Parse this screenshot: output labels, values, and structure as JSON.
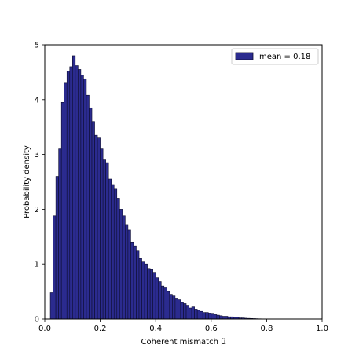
{
  "chart_data": {
    "type": "bar",
    "title": "",
    "xlabel": "Coherent mismatch μ̃",
    "ylabel": "Probability density",
    "xlim": [
      0.0,
      1.0
    ],
    "ylim": [
      0,
      5
    ],
    "x_ticks": [
      "0.0",
      "0.2",
      "0.4",
      "0.6",
      "0.8",
      "1.0"
    ],
    "y_ticks": [
      "0",
      "1",
      "2",
      "3",
      "4",
      "5"
    ],
    "grid": false,
    "legend_position": "top-right",
    "bar_color": "#2b2b8f",
    "edge_color": "#0d0d2e",
    "bin_width": 0.01,
    "series": [
      {
        "name": "mean = 0.18",
        "bin_start": 0.02,
        "values": [
          0.48,
          1.88,
          2.6,
          3.1,
          3.95,
          4.3,
          4.52,
          4.6,
          4.8,
          4.62,
          4.55,
          4.45,
          4.38,
          4.08,
          3.85,
          3.6,
          3.35,
          3.3,
          3.1,
          2.9,
          2.85,
          2.55,
          2.45,
          2.38,
          2.2,
          2.0,
          1.88,
          1.72,
          1.62,
          1.4,
          1.33,
          1.25,
          1.1,
          1.05,
          1.0,
          0.92,
          0.9,
          0.85,
          0.75,
          0.68,
          0.6,
          0.58,
          0.5,
          0.45,
          0.42,
          0.38,
          0.35,
          0.3,
          0.28,
          0.25,
          0.2,
          0.22,
          0.18,
          0.16,
          0.14,
          0.12,
          0.12,
          0.1,
          0.09,
          0.08,
          0.07,
          0.06,
          0.05,
          0.05,
          0.04,
          0.04,
          0.03,
          0.03,
          0.02,
          0.02,
          0.015,
          0.012,
          0.01,
          0.008,
          0.006,
          0.004,
          0.002,
          0.002,
          0.001,
          0.001
        ]
      }
    ]
  }
}
